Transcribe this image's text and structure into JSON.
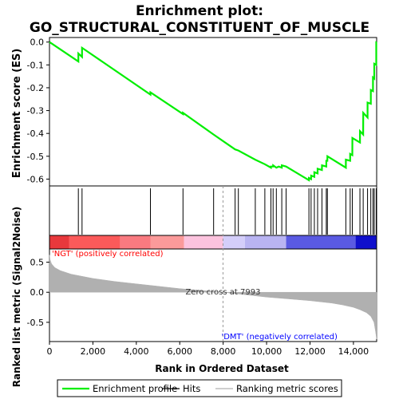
{
  "chart_data": {
    "type": "line",
    "title": "Enrichment plot:",
    "subtitle": "GO_STRUCTURAL_CONSTITUENT_OF_MUSCLE",
    "top_panel": {
      "ylabel": "Enrichment score (ES)",
      "ylim": [
        -0.63,
        0.02
      ],
      "yticks": [
        0.0,
        -0.1,
        -0.2,
        -0.3,
        -0.4,
        -0.5,
        -0.6
      ],
      "ytick_labels": [
        "0.0",
        "-0.1",
        "-0.2",
        "-0.3",
        "-0.4",
        "-0.5",
        "-0.6"
      ],
      "grid": false,
      "series": [
        {
          "name": "Enrichment profile",
          "color": "#00ee00",
          "x": [
            0,
            1330,
            1331,
            1500,
            1501,
            4650,
            4651,
            6150,
            6151,
            7560,
            8550,
            8700,
            9480,
            9920,
            10200,
            10201,
            10300,
            10301,
            10450,
            10560,
            10700,
            10701,
            10900,
            11950,
            11951,
            12050,
            12051,
            12200,
            12201,
            12350,
            12351,
            12550,
            12551,
            12750,
            12751,
            12800,
            12801,
            13650,
            13651,
            13850,
            13851,
            13950,
            13951,
            14300,
            14301,
            14450,
            14451,
            14650,
            14651,
            14800,
            14801,
            14900,
            14901,
            14960,
            14961,
            15050,
            15051,
            15070
          ],
          "y": [
            0.0,
            -0.085,
            -0.05,
            -0.065,
            -0.025,
            -0.23,
            -0.22,
            -0.315,
            -0.31,
            -0.405,
            -0.47,
            -0.475,
            -0.515,
            -0.535,
            -0.55,
            -0.545,
            -0.545,
            -0.54,
            -0.55,
            -0.545,
            -0.55,
            -0.54,
            -0.545,
            -0.605,
            -0.595,
            -0.6,
            -0.585,
            -0.59,
            -0.57,
            -0.575,
            -0.555,
            -0.56,
            -0.54,
            -0.545,
            -0.52,
            -0.52,
            -0.5,
            -0.55,
            -0.515,
            -0.52,
            -0.49,
            -0.495,
            -0.42,
            -0.44,
            -0.39,
            -0.405,
            -0.31,
            -0.33,
            -0.265,
            -0.27,
            -0.21,
            -0.215,
            -0.155,
            -0.16,
            -0.095,
            -0.1,
            -0.0,
            0.0
          ]
        }
      ]
    },
    "hits": [
      1330,
      1500,
      4650,
      6150,
      7560,
      8550,
      8700,
      9480,
      9920,
      10200,
      10300,
      10450,
      10700,
      10900,
      11950,
      12050,
      12200,
      12350,
      12550,
      12750,
      12800,
      13650,
      13850,
      13950,
      14300,
      14450,
      14650,
      14800,
      14900,
      14960,
      15050
    ],
    "bottom_panel": {
      "ylabel": "Ranked list metric (Signal2Noise)",
      "xlabel": "Rank in Ordered Dataset",
      "ylim": [
        -0.82,
        0.72
      ],
      "yticks": [
        0.5,
        0.0,
        -0.5
      ],
      "ytick_labels": [
        "0.5",
        "0.0",
        "-0.5"
      ],
      "xlim": [
        0,
        15070
      ],
      "xticks": [
        0,
        2000,
        4000,
        6000,
        8000,
        10000,
        12000,
        14000
      ],
      "xtick_labels": [
        "0",
        "2,000",
        "4,000",
        "6,000",
        "8,000",
        "10,000",
        "12,000",
        "14,000"
      ],
      "series": [
        {
          "name": "Ranking metric scores",
          "color": "#b0b0b0",
          "x": [
            0,
            30,
            100,
            250,
            500,
            1000,
            2000,
            3000,
            4000,
            5000,
            6000,
            7000,
            7993,
            9000,
            10000,
            11000,
            12000,
            13000,
            13500,
            14000,
            14300,
            14600,
            14800,
            14950,
            15020,
            15070
          ],
          "y": [
            0.62,
            0.54,
            0.47,
            0.41,
            0.36,
            0.3,
            0.23,
            0.18,
            0.14,
            0.1,
            0.06,
            0.03,
            0.0,
            -0.04,
            -0.08,
            -0.11,
            -0.14,
            -0.18,
            -0.21,
            -0.25,
            -0.29,
            -0.34,
            -0.4,
            -0.5,
            -0.65,
            -0.78
          ]
        }
      ],
      "annotations": [
        {
          "text": "Zero cross at 7993",
          "x": 7993
        },
        {
          "text": "'NGT' (positively correlated)",
          "color": "#ff0000"
        },
        {
          "text": "'DMT' (negatively correlated)",
          "color": "#0000ff"
        }
      ]
    },
    "color_bar": [
      {
        "from": 0,
        "to": 900,
        "color": "#e8383c"
      },
      {
        "from": 900,
        "to": 3250,
        "color": "#fb5a5a"
      },
      {
        "from": 3250,
        "to": 4650,
        "color": "#f97a80"
      },
      {
        "from": 4650,
        "to": 6200,
        "color": "#fb9a9a"
      },
      {
        "from": 6200,
        "to": 7993,
        "color": "#fcc3de"
      },
      {
        "from": 7993,
        "to": 9000,
        "color": "#d4cefa"
      },
      {
        "from": 9000,
        "to": 10900,
        "color": "#b9b4f2"
      },
      {
        "from": 10900,
        "to": 14100,
        "color": "#5a5ae2"
      },
      {
        "from": 14100,
        "to": 15070,
        "color": "#1010cc"
      }
    ],
    "legend": {
      "placement": "bottom",
      "items": [
        {
          "label": "Enrichment profile",
          "color": "#00ee00",
          "kind": "line"
        },
        {
          "label": "Hits",
          "color": "#000000",
          "kind": "line"
        },
        {
          "label": "Ranking metric scores",
          "color": "#b0b0b0",
          "kind": "line"
        }
      ]
    }
  }
}
